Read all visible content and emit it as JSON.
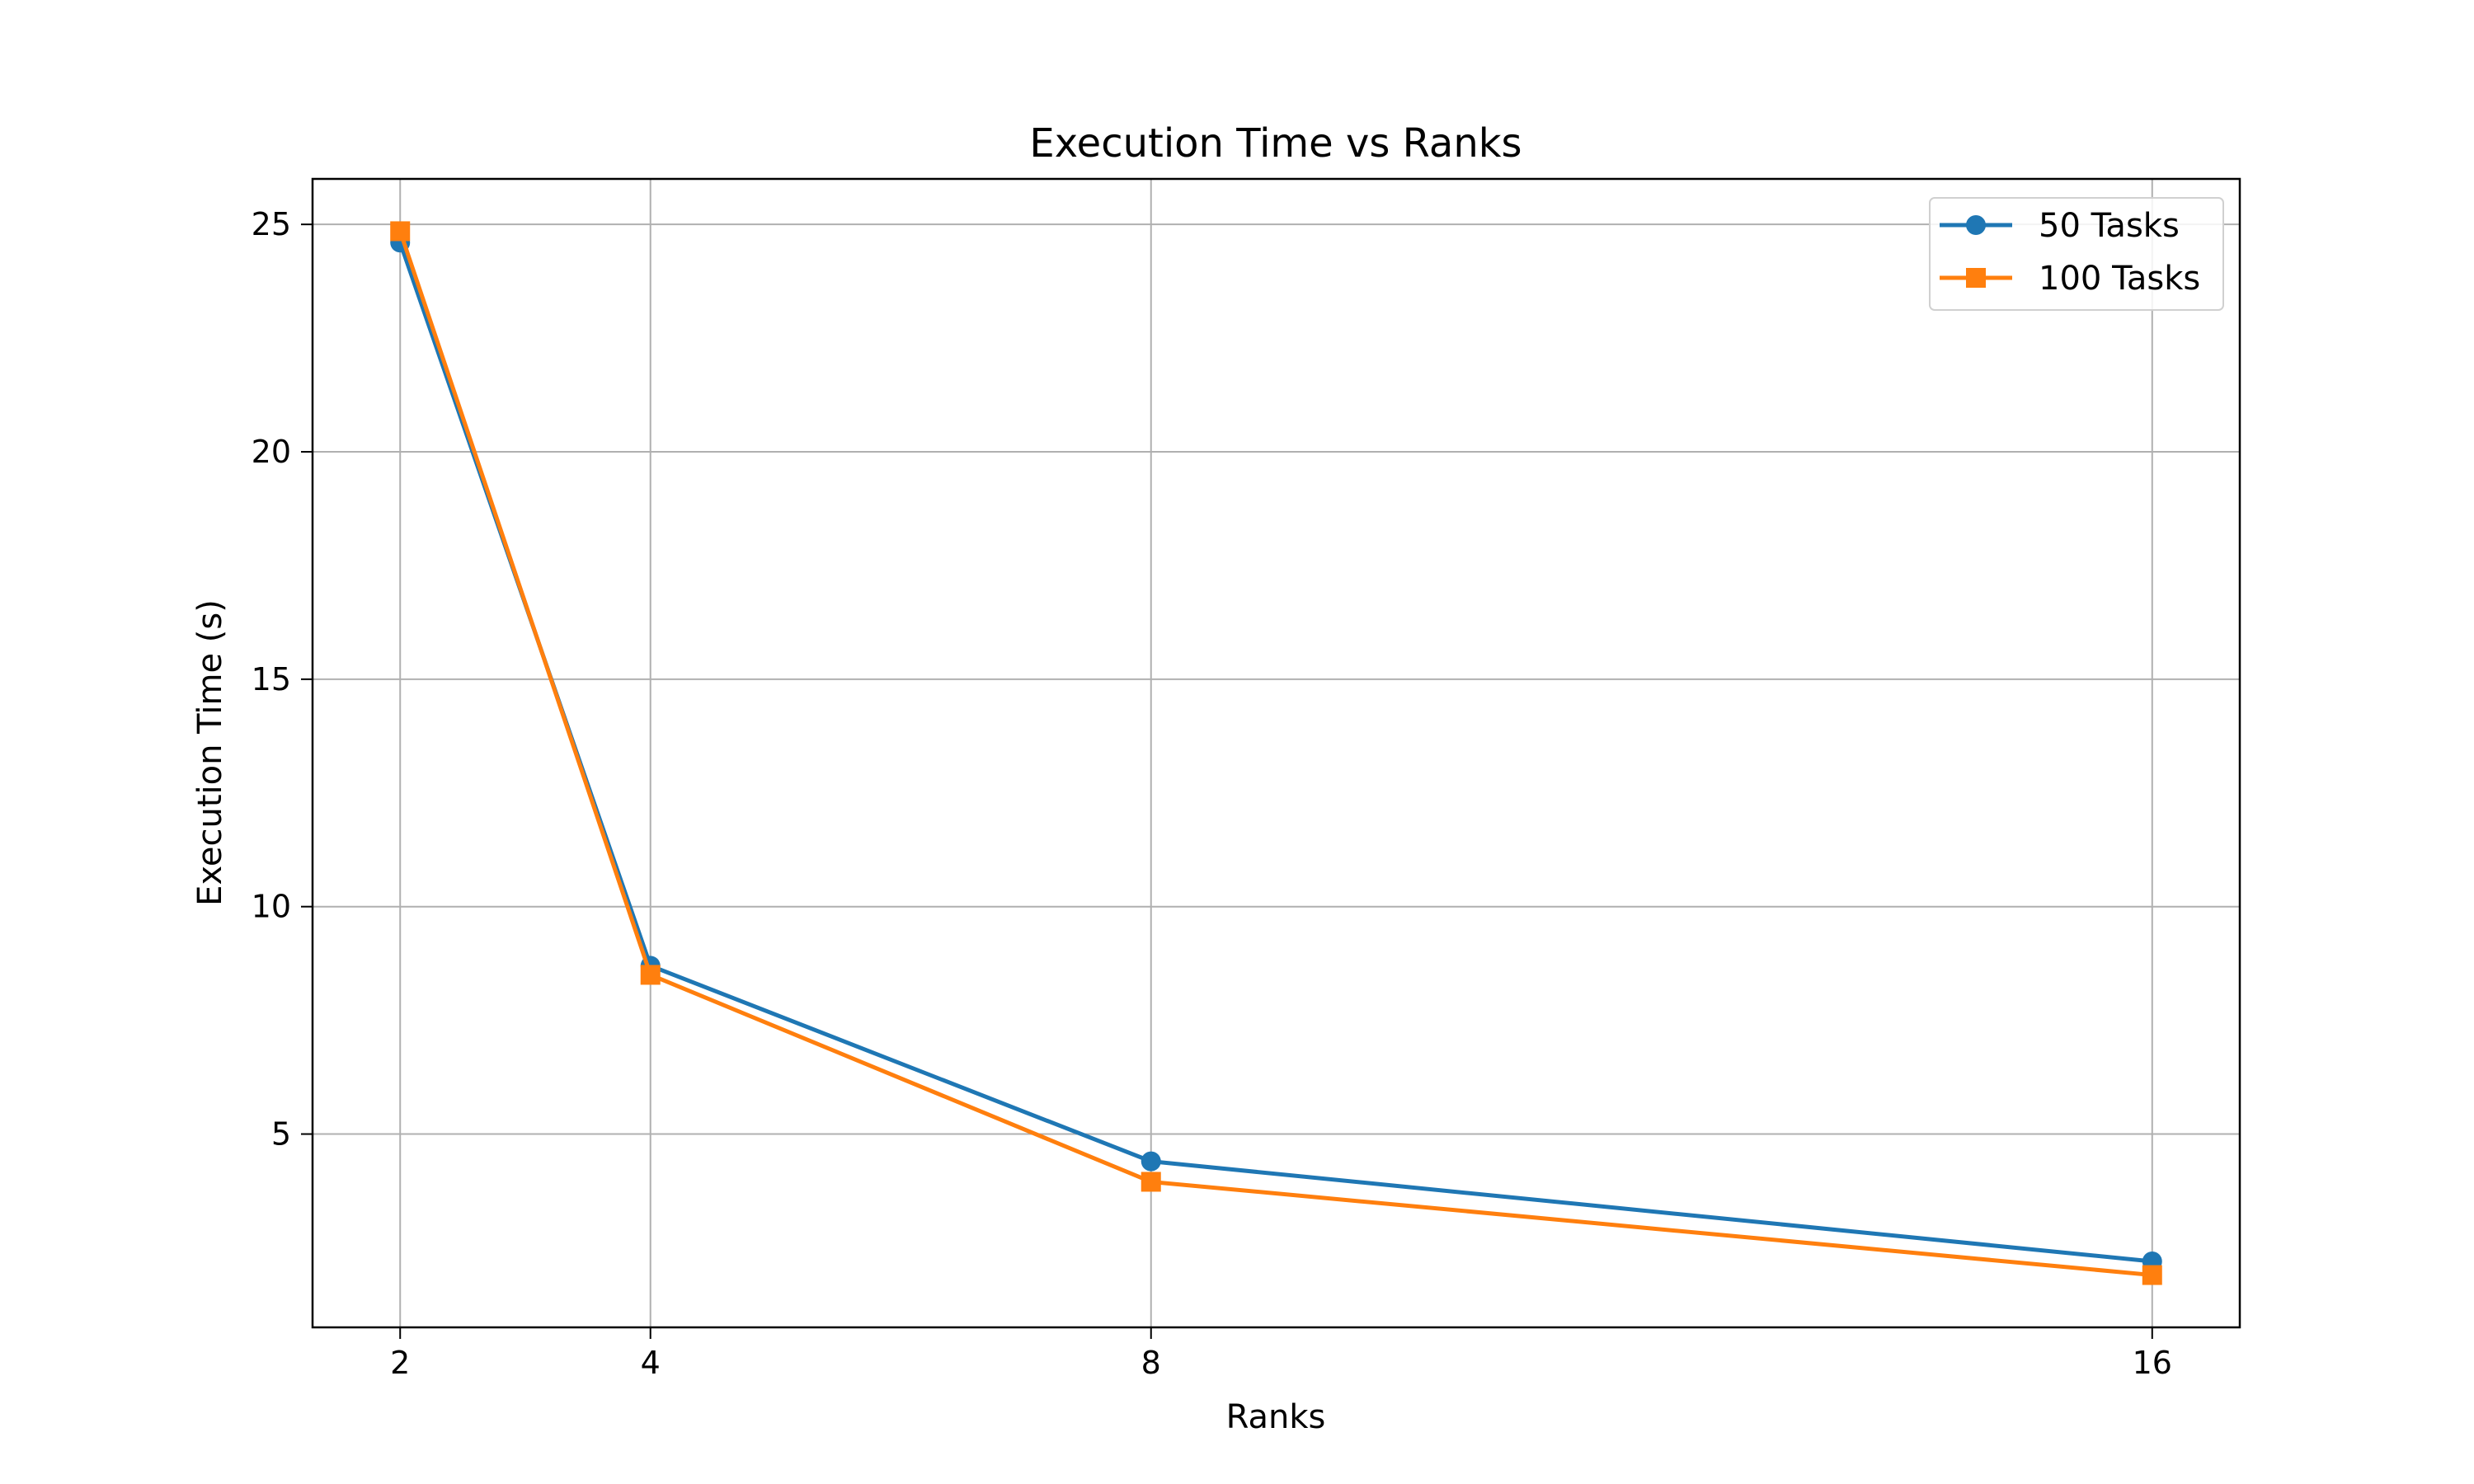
{
  "chart_data": {
    "type": "line",
    "title": "Execution Time vs Ranks",
    "xlabel": "Ranks",
    "ylabel": "Execution Time (s)",
    "x": [
      2,
      4,
      8,
      16
    ],
    "x_ticks": [
      "2",
      "4",
      "8",
      "16"
    ],
    "y_ticks": [
      "5",
      "10",
      "15",
      "20",
      "25"
    ],
    "xlim": [
      1.3,
      16.7
    ],
    "ylim": [
      0.75,
      26.0
    ],
    "grid": true,
    "legend_position": "top-right",
    "series": [
      {
        "name": "50 Tasks",
        "values": [
          24.6,
          8.7,
          4.4,
          2.2
        ],
        "color": "#1f77b4",
        "marker": "circle"
      },
      {
        "name": "100 Tasks",
        "values": [
          24.85,
          8.5,
          3.95,
          1.9
        ],
        "color": "#ff7f0e",
        "marker": "square"
      }
    ]
  }
}
